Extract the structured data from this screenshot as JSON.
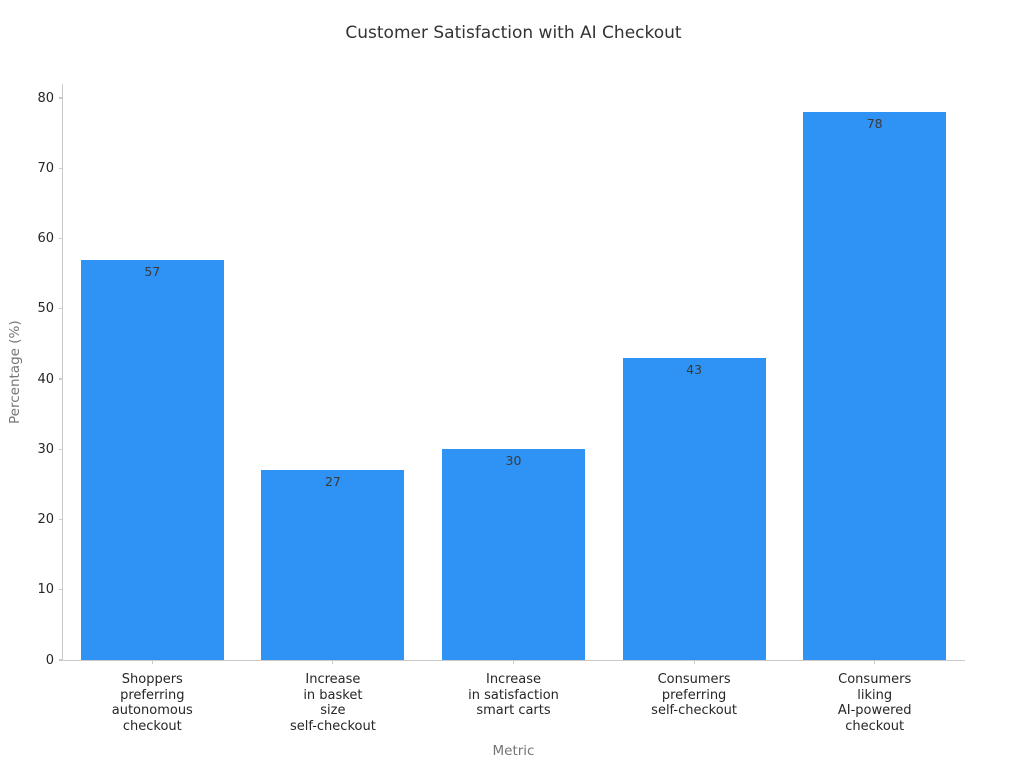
{
  "chart_data": {
    "type": "bar",
    "title": "Customer Satisfaction with AI Checkout",
    "xlabel": "Metric",
    "ylabel": "Percentage (%)",
    "categories": [
      "Shoppers\npreferring\nautonomous\ncheckout",
      "Increase\nin basket\nsize\nself-checkout",
      "Increase\nin satisfaction\nsmart carts",
      "Consumers\npreferring\nself-checkout",
      "Consumers\nliking\nAI-powered\ncheckout"
    ],
    "values": [
      57,
      27,
      30,
      43,
      78
    ],
    "yticks": [
      0,
      10,
      20,
      30,
      40,
      50,
      60,
      70,
      80
    ],
    "ylim": [
      0,
      80
    ],
    "grid": false,
    "legend_position": "none",
    "value_labels_inside_top": true,
    "bar_color": "#2E93F4",
    "value_label_color": "#3A3A3A",
    "axis_color": "#C9C9C9",
    "tick_label_color": "#262626",
    "axis_title_color": "#757575",
    "title_color": "#333333",
    "background_color": "#FFFFFF"
  }
}
